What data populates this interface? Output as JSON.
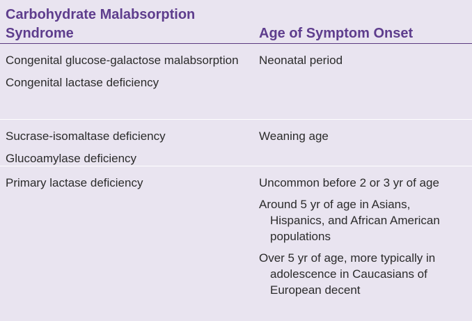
{
  "table": {
    "header": {
      "col1": "Carbohydrate Malabsorption Syndrome",
      "col2": "Age of Symptom Onset"
    },
    "rows": [
      {
        "col1": [
          "Congenital glucose-galactose malabsorption",
          "Congenital lactase deficiency"
        ],
        "col2": [
          "Neonatal period"
        ]
      },
      {
        "col1": [
          "Sucrase-isomaltase deficiency",
          "Glucoamylase deficiency"
        ],
        "col2": [
          "Weaning age"
        ]
      },
      {
        "col1": [
          "Primary lactase deficiency"
        ],
        "col2": [
          "Uncommon before 2 or 3 yr of age",
          "Around 5 yr of age in Asians, Hispanics, and African American populations",
          "Over 5 yr of age, more typically in adolescence in Caucasians of European decent"
        ]
      }
    ]
  }
}
